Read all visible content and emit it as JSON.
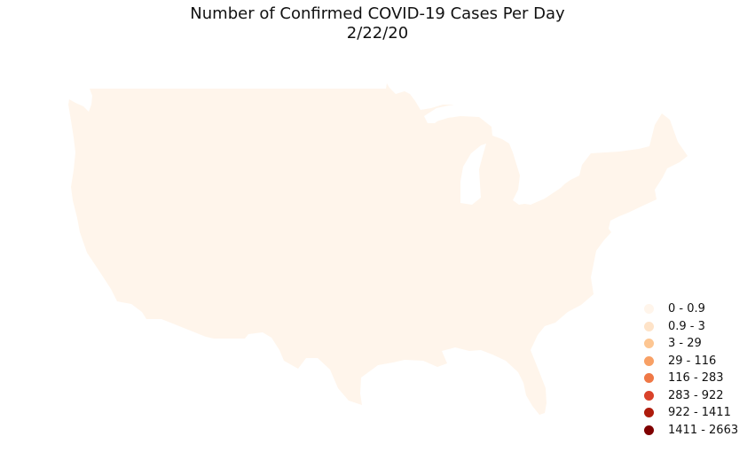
{
  "title": {
    "line1": "Number of Confirmed COVID-19 Cases Per Day",
    "line2": "2/22/20"
  },
  "map": {
    "region": "contiguous-united-states",
    "fill_color": "#fff5eb",
    "background_color": "#ffffff"
  },
  "legend": {
    "placement": "bottom-right",
    "items": [
      {
        "label": "0 - 0.9",
        "color": "#fff5eb"
      },
      {
        "label": "0.9 - 3",
        "color": "#fee3c8"
      },
      {
        "label": "3 - 29",
        "color": "#fdc692"
      },
      {
        "label": "29 - 116",
        "color": "#f8a065"
      },
      {
        "label": "116 - 283",
        "color": "#ef7846"
      },
      {
        "label": "283 - 922",
        "color": "#d9422a"
      },
      {
        "label": "922 - 1411",
        "color": "#ae1b0c"
      },
      {
        "label": "1411 - 2663",
        "color": "#7f0000"
      }
    ]
  }
}
